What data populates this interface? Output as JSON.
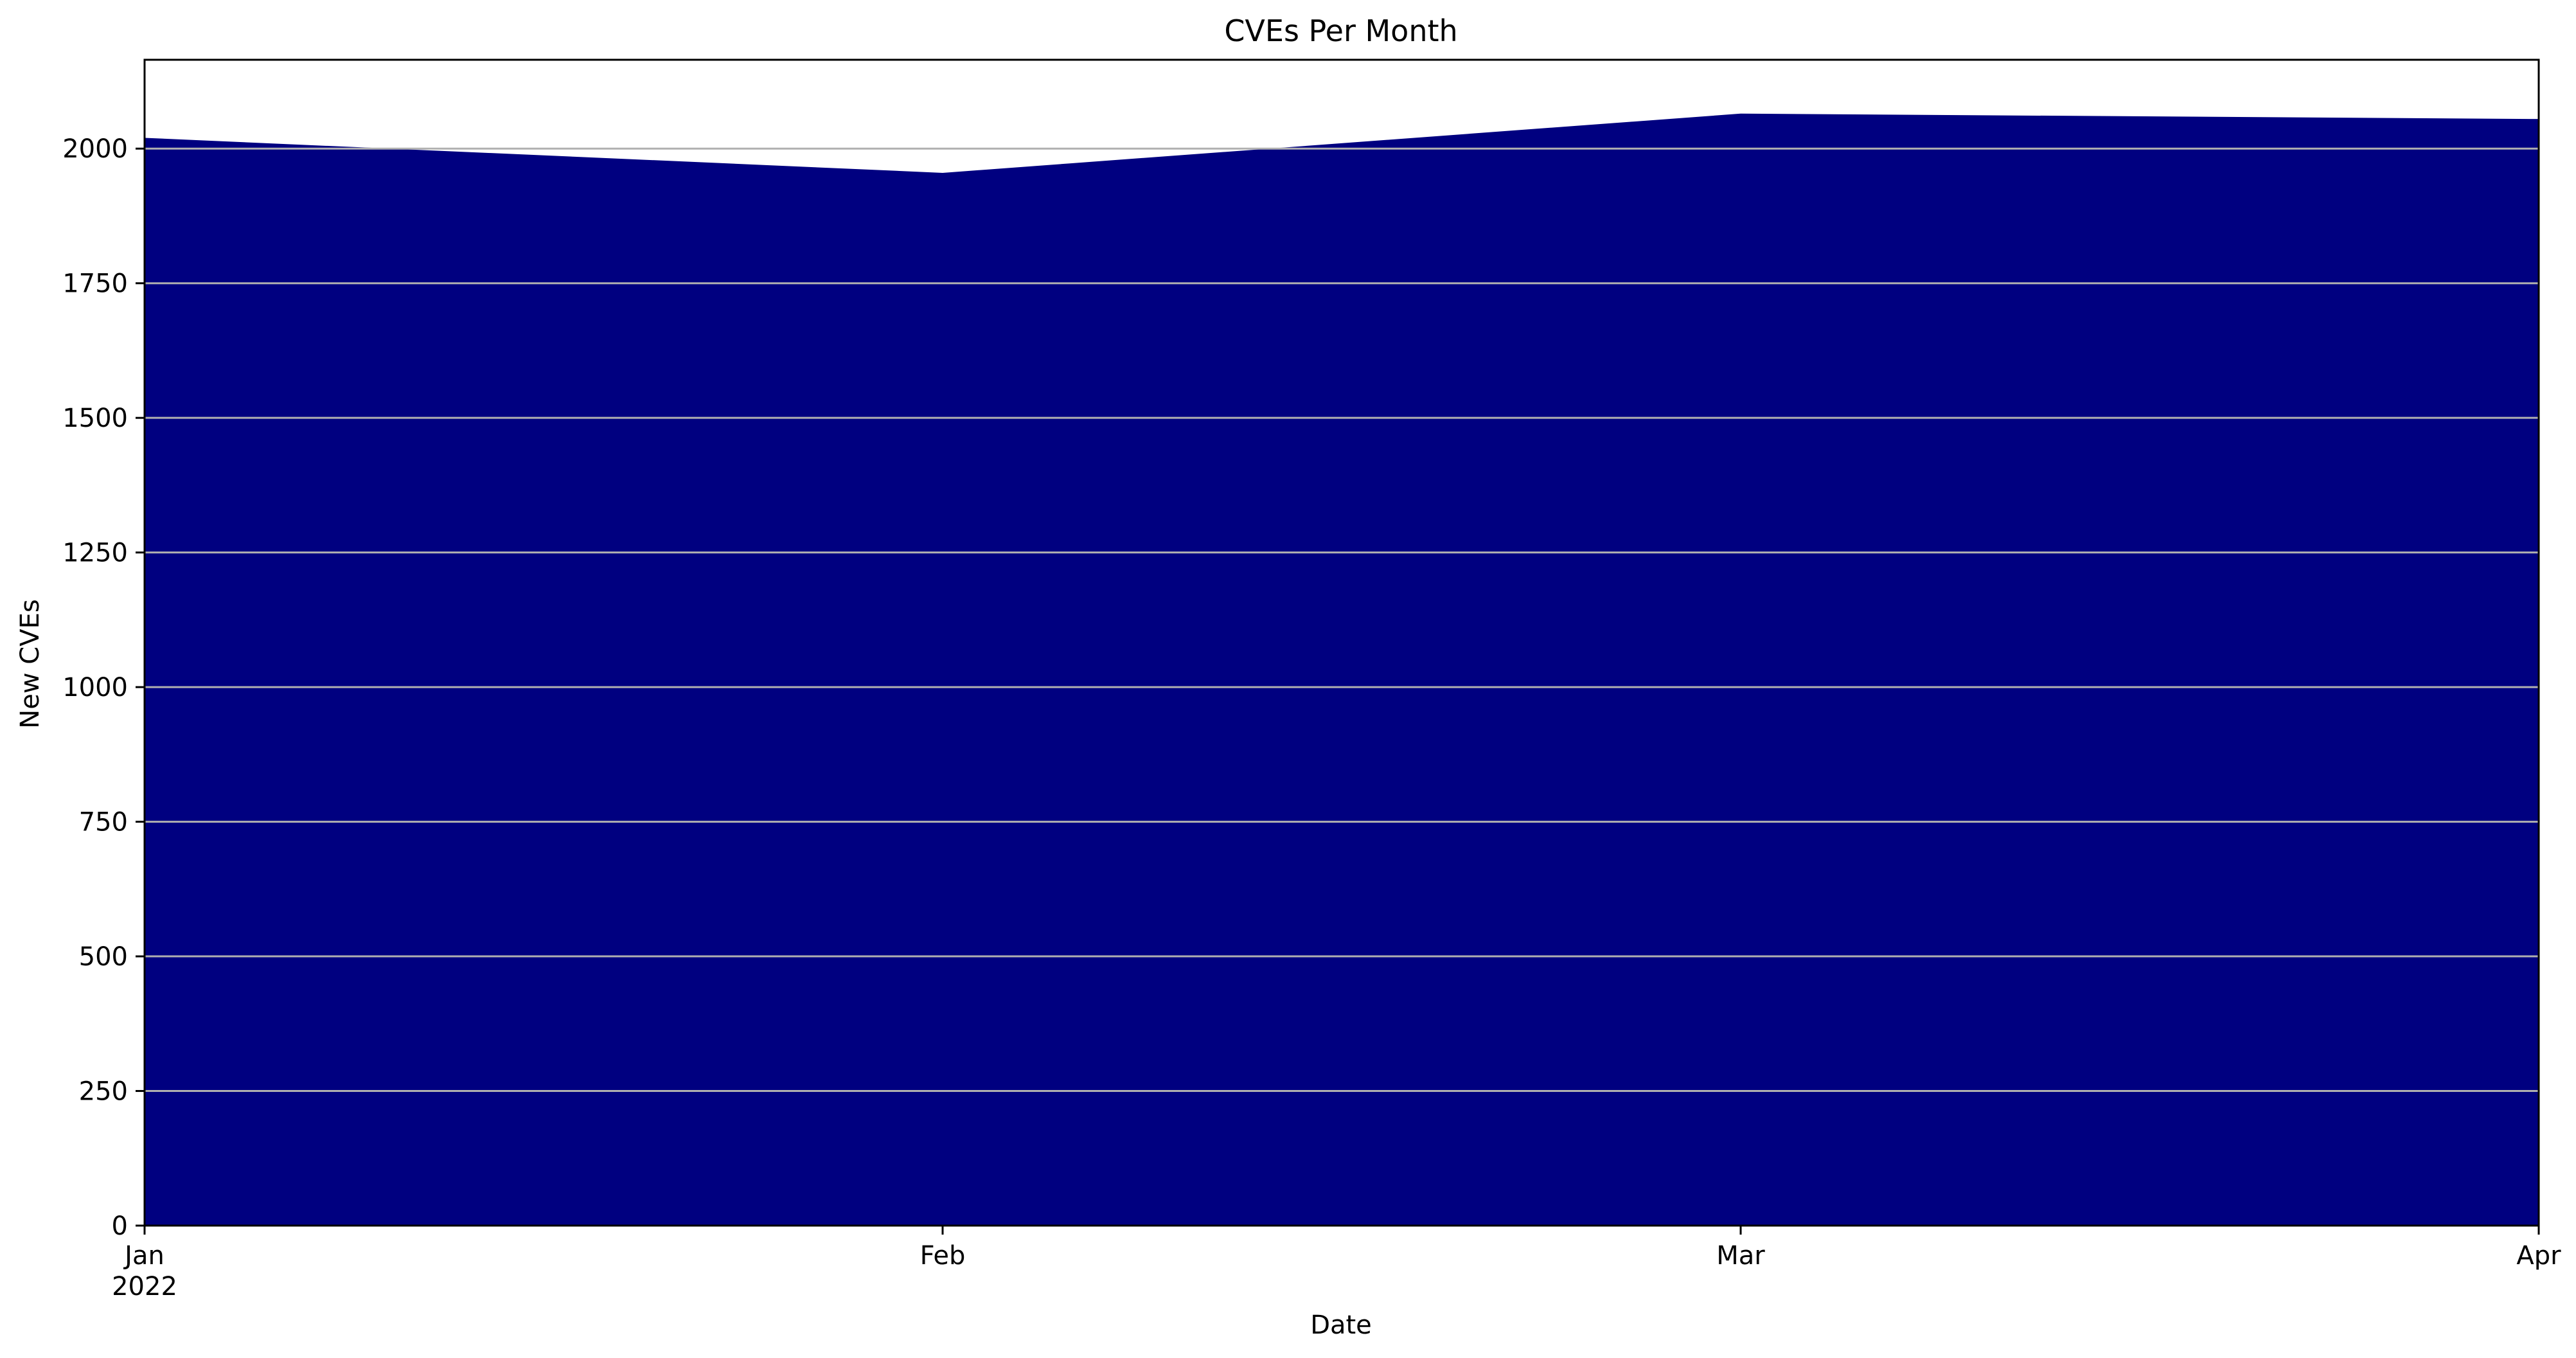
{
  "chart_data": {
    "type": "area",
    "title": "CVEs Per Month",
    "xlabel": "Date",
    "ylabel": "New CVEs",
    "x": [
      "2022-01",
      "2022-02",
      "2022-03",
      "2022-04"
    ],
    "x_tick_labels": [
      "Jan",
      "Feb",
      "Mar",
      "Apr"
    ],
    "x_tick_sublabel": "2022",
    "series": [
      {
        "values": [
          2020,
          1955,
          2065,
          2055
        ]
      }
    ],
    "ylim": [
      0,
      2165
    ],
    "y_ticks": [
      0,
      250,
      500,
      750,
      1000,
      1250,
      1500,
      1750,
      2000
    ],
    "grid": "horizontal",
    "colors": {
      "fill": "#000080",
      "grid": "#b0b0b0",
      "axes": "#000000"
    }
  }
}
